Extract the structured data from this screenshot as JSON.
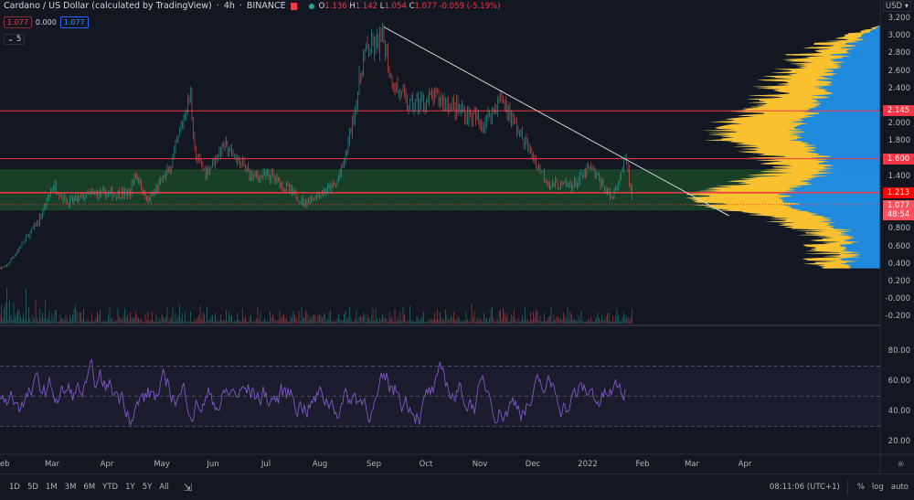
{
  "header": {
    "symbol_title": "Cardano / US Dollar (calculated by TradingView)",
    "interval": "4h",
    "exchange": "BINANCE",
    "ohlc": {
      "o_label": "O",
      "o": "1.136",
      "h_label": "H",
      "h": "1.142",
      "l_label": "L",
      "l": "1.054",
      "c_label": "C",
      "c": "1.077",
      "change": "-0.059 (-5.19%)"
    },
    "bid": "1.077",
    "spread": "0.000",
    "ask": "1.077",
    "indicators_collapsed": "5"
  },
  "price_axis": {
    "currency": "USD",
    "ticks": [
      "3.200",
      "3.000",
      "2.800",
      "2.600",
      "2.400",
      "2.000",
      "1.800",
      "1.400",
      "0.800",
      "0.600",
      "0.400",
      "0.200",
      "-0.000",
      "-0.200"
    ],
    "tags": [
      {
        "value": "2.145",
        "color": "#f23645"
      },
      {
        "value": "1.600",
        "color": "#f23645"
      },
      {
        "value": "1.213",
        "color": "#ff0000"
      },
      {
        "value": "1.077",
        "color": "#f7525f",
        "countdown": "48:54"
      }
    ]
  },
  "rsi_axis": {
    "ticks": [
      "80.00",
      "60.00",
      "40.00",
      "20.00"
    ]
  },
  "time_axis": {
    "labels": [
      "Feb",
      "Mar",
      "Apr",
      "May",
      "Jun",
      "Jul",
      "Aug",
      "Sep",
      "Oct",
      "Nov",
      "Dec",
      "2022",
      "Feb",
      "Mar",
      "Apr"
    ]
  },
  "bottom_bar": {
    "ranges": [
      "1D",
      "5D",
      "1M",
      "3M",
      "6M",
      "YTD",
      "1Y",
      "5Y",
      "All"
    ],
    "clock": "08:11:06 (UTC+1)",
    "percent": "%",
    "log": "log",
    "auto": "auto"
  },
  "chart_data": {
    "type": "candlestick",
    "price_anchors": [
      [
        "2021-02-01",
        0.36
      ],
      [
        "2021-02-20",
        0.9
      ],
      [
        "2021-02-28",
        1.3
      ],
      [
        "2021-03-08",
        1.1
      ],
      [
        "2021-03-22",
        1.2
      ],
      [
        "2021-04-12",
        1.2
      ],
      [
        "2021-04-15",
        1.45
      ],
      [
        "2021-04-22",
        1.1
      ],
      [
        "2021-05-05",
        1.5
      ],
      [
        "2021-05-16",
        2.35
      ],
      [
        "2021-05-19",
        1.6
      ],
      [
        "2021-05-25",
        1.45
      ],
      [
        "2021-06-04",
        1.75
      ],
      [
        "2021-06-20",
        1.4
      ],
      [
        "2021-07-01",
        1.4
      ],
      [
        "2021-07-19",
        1.1
      ],
      [
        "2021-08-06",
        1.3
      ],
      [
        "2021-08-11",
        1.6
      ],
      [
        "2021-08-16",
        2.1
      ],
      [
        "2021-08-22",
        2.8
      ],
      [
        "2021-09-02",
        2.95
      ],
      [
        "2021-09-06",
        2.5
      ],
      [
        "2021-09-16",
        2.2
      ],
      [
        "2021-10-02",
        2.3
      ],
      [
        "2021-10-28",
        2.0
      ],
      [
        "2021-11-07",
        2.3
      ],
      [
        "2021-11-17",
        1.9
      ],
      [
        "2021-11-28",
        1.5
      ],
      [
        "2021-12-05",
        1.3
      ],
      [
        "2021-12-18",
        1.3
      ],
      [
        "2021-12-27",
        1.5
      ],
      [
        "2022-01-08",
        1.15
      ],
      [
        "2022-01-16",
        1.6
      ],
      [
        "2022-01-20",
        1.077
      ]
    ],
    "horizontal_levels": [
      2.145,
      1.6,
      1.213
    ],
    "support_zone": [
      1.01,
      1.48
    ],
    "trendline": [
      [
        "2021-09-02",
        3.1
      ],
      [
        "2022-03-15",
        0.95
      ]
    ],
    "price_range": [
      -0.2,
      3.2
    ],
    "rsi_levels": [
      30,
      50,
      70
    ],
    "rsi_range": [
      20,
      80
    ],
    "colors": {
      "up": "#26a69a",
      "down": "#ef5350",
      "rsi": "#7e57c2",
      "profile_blue": "#2196f3",
      "profile_yellow": "#fbc02d",
      "zone": "#1b5e20",
      "level": "#f23645"
    }
  }
}
